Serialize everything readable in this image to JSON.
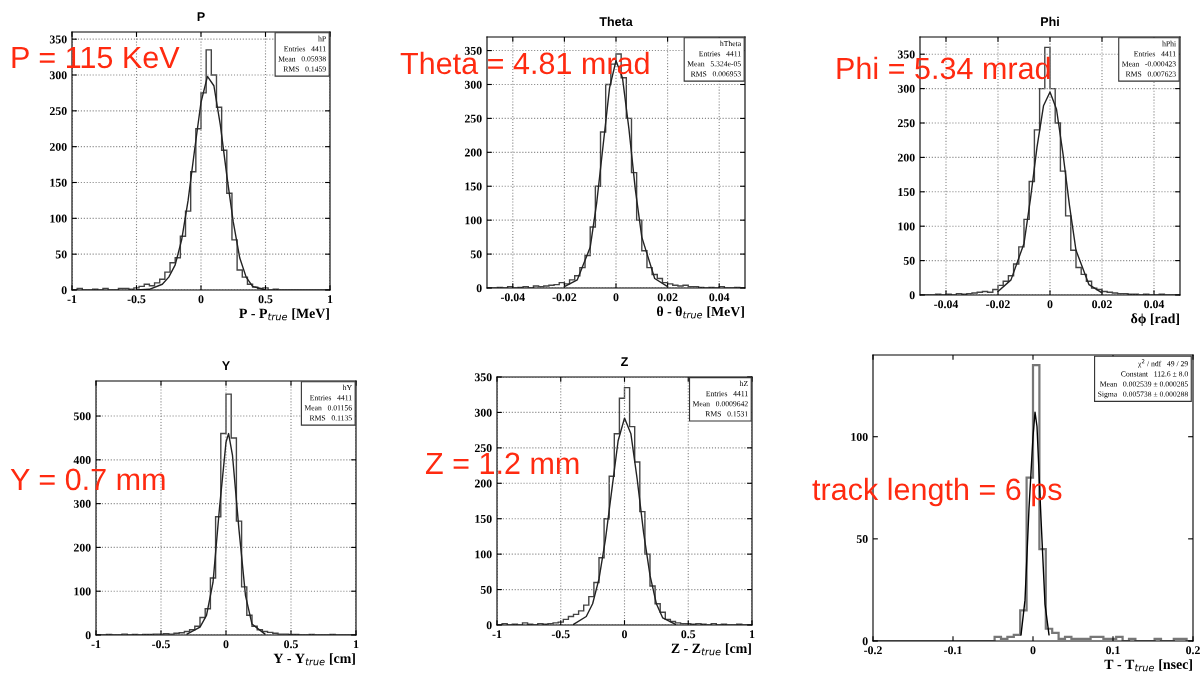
{
  "chart_data": [
    {
      "type": "histogram",
      "title": "P",
      "xlabel": "P - P$_{true}$ [MeV]",
      "xlim": [
        -1,
        1
      ],
      "ylim": [
        0,
        360
      ],
      "xticks": [
        -1,
        -0.5,
        0,
        0.5,
        1
      ],
      "yticks": [
        0,
        50,
        100,
        150,
        200,
        250,
        300,
        350
      ],
      "grid": true,
      "annotations": [
        "P = 115 KeV",
        "hP",
        "Entries   4411",
        "Mean   0.05938",
        "RMS   0.1459"
      ],
      "series": [
        {
          "type": "histogram",
          "color": "#444444",
          "bins": [
            -1,
            -0.96,
            -0.92,
            -0.88,
            -0.84,
            -0.8,
            -0.76,
            -0.72,
            -0.68,
            -0.64,
            -0.6,
            -0.56,
            -0.52,
            -0.48,
            -0.44,
            -0.4,
            -0.36,
            -0.32,
            -0.28,
            -0.24,
            -0.2,
            -0.16,
            -0.12,
            -0.08,
            -0.04,
            0,
            0.04,
            0.08,
            0.12,
            0.16,
            0.2,
            0.24,
            0.28,
            0.32,
            0.36,
            0.4,
            0.44,
            0.48,
            0.52,
            0.56,
            0.6,
            0.64,
            0.68,
            0.72,
            0.76,
            0.8,
            0.84,
            0.88,
            0.92,
            0.96,
            1
          ],
          "values": [
            0,
            2,
            0,
            0,
            1,
            0,
            2,
            0,
            0,
            2,
            2,
            1,
            3,
            5,
            8,
            6,
            10,
            15,
            25,
            38,
            45,
            75,
            110,
            165,
            225,
            275,
            335,
            300,
            255,
            195,
            135,
            70,
            28,
            18,
            8,
            4,
            2,
            3,
            0,
            1,
            0,
            0,
            0,
            0,
            0,
            0,
            0,
            0,
            0,
            0
          ]
        },
        {
          "type": "line",
          "color": "#222222",
          "x": [
            -0.5,
            -0.4,
            -0.3,
            -0.25,
            -0.2,
            -0.15,
            -0.1,
            -0.05,
            0,
            0.05,
            0.1,
            0.15,
            0.2,
            0.25,
            0.3,
            0.35,
            0.4,
            0.5
          ],
          "values": [
            0,
            1,
            8,
            18,
            35,
            70,
            125,
            195,
            262,
            298,
            285,
            230,
            160,
            95,
            45,
            18,
            5,
            0
          ]
        }
      ]
    },
    {
      "type": "histogram",
      "title": "Theta",
      "xlabel": "θ - θ$_{true}$ [MeV]",
      "xlim": [
        -0.05,
        0.05
      ],
      "ylim": [
        0,
        370
      ],
      "xticks": [
        -0.04,
        -0.02,
        0,
        0.02,
        0.04
      ],
      "yticks": [
        0,
        50,
        100,
        150,
        200,
        250,
        300,
        350
      ],
      "grid": true,
      "annotations": [
        "Theta = 4.81 mrad",
        "hTheta",
        "Entries   4411",
        "Mean   5.324e-05",
        "RMS   0.006953"
      ],
      "series": [
        {
          "type": "histogram",
          "color": "#444444",
          "bins": [
            -0.05,
            -0.048,
            -0.046,
            -0.044,
            -0.042,
            -0.04,
            -0.038,
            -0.036,
            -0.034,
            -0.032,
            -0.03,
            -0.028,
            -0.026,
            -0.024,
            -0.022,
            -0.02,
            -0.018,
            -0.016,
            -0.014,
            -0.012,
            -0.01,
            -0.008,
            -0.006,
            -0.004,
            -0.002,
            0,
            0.002,
            0.004,
            0.006,
            0.008,
            0.01,
            0.012,
            0.014,
            0.016,
            0.018,
            0.02,
            0.022,
            0.024,
            0.026,
            0.028,
            0.03,
            0.032,
            0.034,
            0.036,
            0.038,
            0.04,
            0.042,
            0.044,
            0.046,
            0.048,
            0.05
          ],
          "values": [
            0,
            0,
            1,
            0,
            2,
            0,
            1,
            2,
            0,
            3,
            2,
            3,
            4,
            5,
            8,
            6,
            12,
            18,
            30,
            48,
            90,
            150,
            230,
            300,
            330,
            345,
            310,
            250,
            170,
            100,
            55,
            30,
            20,
            14,
            8,
            6,
            4,
            3,
            4,
            2,
            2,
            1,
            0,
            1,
            0,
            2,
            0,
            0,
            1,
            0
          ]
        },
        {
          "type": "line",
          "color": "#222222",
          "x": [
            -0.02,
            -0.015,
            -0.01,
            -0.0075,
            -0.005,
            -0.0025,
            0,
            0.0025,
            0.005,
            0.0075,
            0.01,
            0.015,
            0.02
          ],
          "values": [
            2,
            12,
            60,
            125,
            210,
            295,
            335,
            310,
            235,
            145,
            75,
            14,
            2
          ]
        }
      ]
    },
    {
      "type": "histogram",
      "title": "Phi",
      "xlabel": "δϕ [rad]",
      "xlim": [
        -0.05,
        0.05
      ],
      "ylim": [
        0,
        375
      ],
      "xticks": [
        -0.04,
        -0.02,
        0,
        0.02,
        0.04
      ],
      "yticks": [
        0,
        50,
        100,
        150,
        200,
        250,
        300,
        350
      ],
      "grid": true,
      "annotations": [
        "Phi = 5.34 mrad",
        "hPhi",
        "Entries   4411",
        "Mean   -0.000423",
        "RMS   0.007623"
      ],
      "series": [
        {
          "type": "histogram",
          "color": "#444444",
          "bins": [
            -0.05,
            -0.048,
            -0.046,
            -0.044,
            -0.042,
            -0.04,
            -0.038,
            -0.036,
            -0.034,
            -0.032,
            -0.03,
            -0.028,
            -0.026,
            -0.024,
            -0.022,
            -0.02,
            -0.018,
            -0.016,
            -0.014,
            -0.012,
            -0.01,
            -0.008,
            -0.006,
            -0.004,
            -0.002,
            0,
            0.002,
            0.004,
            0.006,
            0.008,
            0.01,
            0.012,
            0.014,
            0.016,
            0.018,
            0.02,
            0.022,
            0.024,
            0.026,
            0.028,
            0.03,
            0.032,
            0.034,
            0.036,
            0.038,
            0.04,
            0.042,
            0.044,
            0.046,
            0.048,
            0.05
          ],
          "values": [
            0,
            0,
            0,
            1,
            0,
            1,
            0,
            2,
            1,
            2,
            3,
            4,
            5,
            4,
            8,
            14,
            20,
            28,
            45,
            70,
            110,
            165,
            240,
            300,
            360,
            300,
            250,
            180,
            115,
            65,
            40,
            30,
            20,
            10,
            8,
            5,
            4,
            3,
            2,
            2,
            1,
            1,
            0,
            1,
            0,
            0,
            1,
            0,
            0,
            0
          ]
        },
        {
          "type": "line",
          "color": "#222222",
          "x": [
            -0.02,
            -0.015,
            -0.01,
            -0.0075,
            -0.005,
            -0.0025,
            0,
            0.0025,
            0.005,
            0.0075,
            0.01,
            0.015,
            0.02
          ],
          "values": [
            5,
            22,
            75,
            140,
            215,
            275,
            295,
            270,
            205,
            130,
            65,
            15,
            3
          ]
        }
      ]
    },
    {
      "type": "histogram",
      "title": "Y",
      "xlabel": "Y - Y$_{true}$ [cm]",
      "xlim": [
        -1,
        1
      ],
      "ylim": [
        0,
        580
      ],
      "xticks": [
        -1,
        -0.5,
        0,
        0.5,
        1
      ],
      "yticks": [
        0,
        100,
        200,
        300,
        400,
        500
      ],
      "grid": true,
      "annotations": [
        "Y = 0.7 mm",
        "hY",
        "Entries   4411",
        "Mean   0.01156",
        "RMS   0.1135"
      ],
      "series": [
        {
          "type": "histogram",
          "color": "#444444",
          "bins": [
            -1,
            -0.96,
            -0.92,
            -0.88,
            -0.84,
            -0.8,
            -0.76,
            -0.72,
            -0.68,
            -0.64,
            -0.6,
            -0.56,
            -0.52,
            -0.48,
            -0.44,
            -0.4,
            -0.36,
            -0.32,
            -0.28,
            -0.24,
            -0.2,
            -0.16,
            -0.12,
            -0.08,
            -0.04,
            0,
            0.04,
            0.08,
            0.12,
            0.16,
            0.2,
            0.24,
            0.28,
            0.32,
            0.36,
            0.4,
            0.44,
            0.48,
            0.52,
            0.56,
            0.6,
            0.64,
            0.68,
            0.72,
            0.76,
            0.8,
            0.84,
            0.88,
            0.92,
            0.96,
            1
          ],
          "values": [
            0,
            0,
            1,
            0,
            0,
            2,
            0,
            1,
            0,
            1,
            1,
            2,
            2,
            3,
            2,
            4,
            5,
            8,
            12,
            20,
            40,
            60,
            130,
            270,
            460,
            550,
            450,
            260,
            110,
            45,
            20,
            12,
            8,
            6,
            4,
            2,
            2,
            1,
            1,
            0,
            0,
            1,
            0,
            0,
            0,
            1,
            0,
            0,
            0,
            0
          ]
        },
        {
          "type": "line",
          "color": "#222222",
          "x": [
            -0.3,
            -0.2,
            -0.15,
            -0.1,
            -0.05,
            0,
            0.02,
            0.05,
            0.1,
            0.15,
            0.2,
            0.3
          ],
          "values": [
            2,
            18,
            45,
            120,
            290,
            440,
            460,
            410,
            240,
            90,
            25,
            2
          ]
        }
      ]
    },
    {
      "type": "histogram",
      "title": "Z",
      "xlabel": "Z - Z$_{true}$ [cm]",
      "xlim": [
        -1,
        1
      ],
      "ylim": [
        0,
        350
      ],
      "xticks": [
        -1,
        -0.5,
        0,
        0.5,
        1
      ],
      "yticks": [
        0,
        50,
        100,
        150,
        200,
        250,
        300,
        350
      ],
      "grid": true,
      "annotations": [
        "Z = 1.2 mm",
        "hZ",
        "Entries   4411",
        "Mean   0.0009642",
        "RMS   0.1531"
      ],
      "series": [
        {
          "type": "histogram",
          "color": "#444444",
          "bins": [
            -1,
            -0.96,
            -0.92,
            -0.88,
            -0.84,
            -0.8,
            -0.76,
            -0.72,
            -0.68,
            -0.64,
            -0.6,
            -0.56,
            -0.52,
            -0.48,
            -0.44,
            -0.4,
            -0.36,
            -0.32,
            -0.28,
            -0.24,
            -0.2,
            -0.16,
            -0.12,
            -0.08,
            -0.04,
            0,
            0.04,
            0.08,
            0.12,
            0.16,
            0.2,
            0.24,
            0.28,
            0.32,
            0.36,
            0.4,
            0.44,
            0.48,
            0.52,
            0.56,
            0.6,
            0.64,
            0.68,
            0.72,
            0.76,
            0.8,
            0.84,
            0.88,
            0.92,
            0.96,
            1
          ],
          "values": [
            0,
            2,
            0,
            1,
            0,
            3,
            1,
            0,
            2,
            1,
            2,
            3,
            4,
            8,
            12,
            15,
            20,
            28,
            40,
            60,
            95,
            150,
            210,
            270,
            320,
            335,
            280,
            230,
            160,
            100,
            55,
            30,
            18,
            8,
            5,
            3,
            2,
            2,
            1,
            2,
            1,
            0,
            2,
            0,
            1,
            0,
            0,
            1,
            0,
            0
          ]
        },
        {
          "type": "line",
          "color": "#222222",
          "x": [
            -0.4,
            -0.3,
            -0.25,
            -0.2,
            -0.15,
            -0.1,
            -0.05,
            0,
            0.05,
            0.1,
            0.15,
            0.2,
            0.25,
            0.3,
            0.4
          ],
          "values": [
            1,
            12,
            30,
            65,
            120,
            190,
            260,
            292,
            270,
            205,
            130,
            70,
            30,
            10,
            1
          ]
        }
      ]
    },
    {
      "type": "histogram",
      "xlabel": "T - T$_{true}$ [nsec]",
      "xlim": [
        -0.2,
        0.2
      ],
      "ylim": [
        0,
        140
      ],
      "xticks": [
        -0.2,
        -0.1,
        0,
        0.1,
        0.2
      ],
      "yticks": [
        0,
        50,
        100
      ],
      "grid": false,
      "annotations": [
        "track length = 6 ps",
        "χ$^{2}$ / ndf   49 / 29",
        "Constant   112.6 ± 8.0",
        "Mean   0.002539 ± 0.000285",
        "Sigma   0.005738 ± 0.000288"
      ],
      "series": [
        {
          "type": "histogram",
          "color": "#777777",
          "bins": [
            -0.2,
            -0.192,
            -0.184,
            -0.176,
            -0.168,
            -0.16,
            -0.152,
            -0.144,
            -0.136,
            -0.128,
            -0.12,
            -0.112,
            -0.104,
            -0.096,
            -0.088,
            -0.08,
            -0.072,
            -0.064,
            -0.056,
            -0.048,
            -0.04,
            -0.032,
            -0.024,
            -0.016,
            -0.008,
            0,
            0.008,
            0.016,
            0.024,
            0.032,
            0.04,
            0.048,
            0.056,
            0.064,
            0.072,
            0.08,
            0.088,
            0.096,
            0.104,
            0.112,
            0.12,
            0.128,
            0.136,
            0.144,
            0.152,
            0.16,
            0.168,
            0.176,
            0.184,
            0.192,
            0.2
          ],
          "values": [
            0,
            0,
            0,
            0,
            0,
            0,
            0,
            0,
            0,
            0,
            0,
            0,
            0,
            0,
            0,
            0,
            0,
            0,
            0,
            2,
            1,
            2,
            3,
            15,
            80,
            135,
            45,
            6,
            4,
            1,
            2,
            1,
            1,
            1,
            2,
            2,
            1,
            1,
            2,
            0,
            1,
            0,
            0,
            0,
            1,
            0,
            0,
            1,
            1,
            0
          ]
        },
        {
          "type": "line",
          "color": "#000000",
          "x": [
            -0.015,
            -0.01,
            -0.005,
            0,
            0.0025,
            0.005,
            0.01,
            0.015,
            0.02
          ],
          "values": [
            3,
            20,
            65,
            100,
            112,
            105,
            60,
            18,
            3
          ]
        }
      ]
    }
  ]
}
